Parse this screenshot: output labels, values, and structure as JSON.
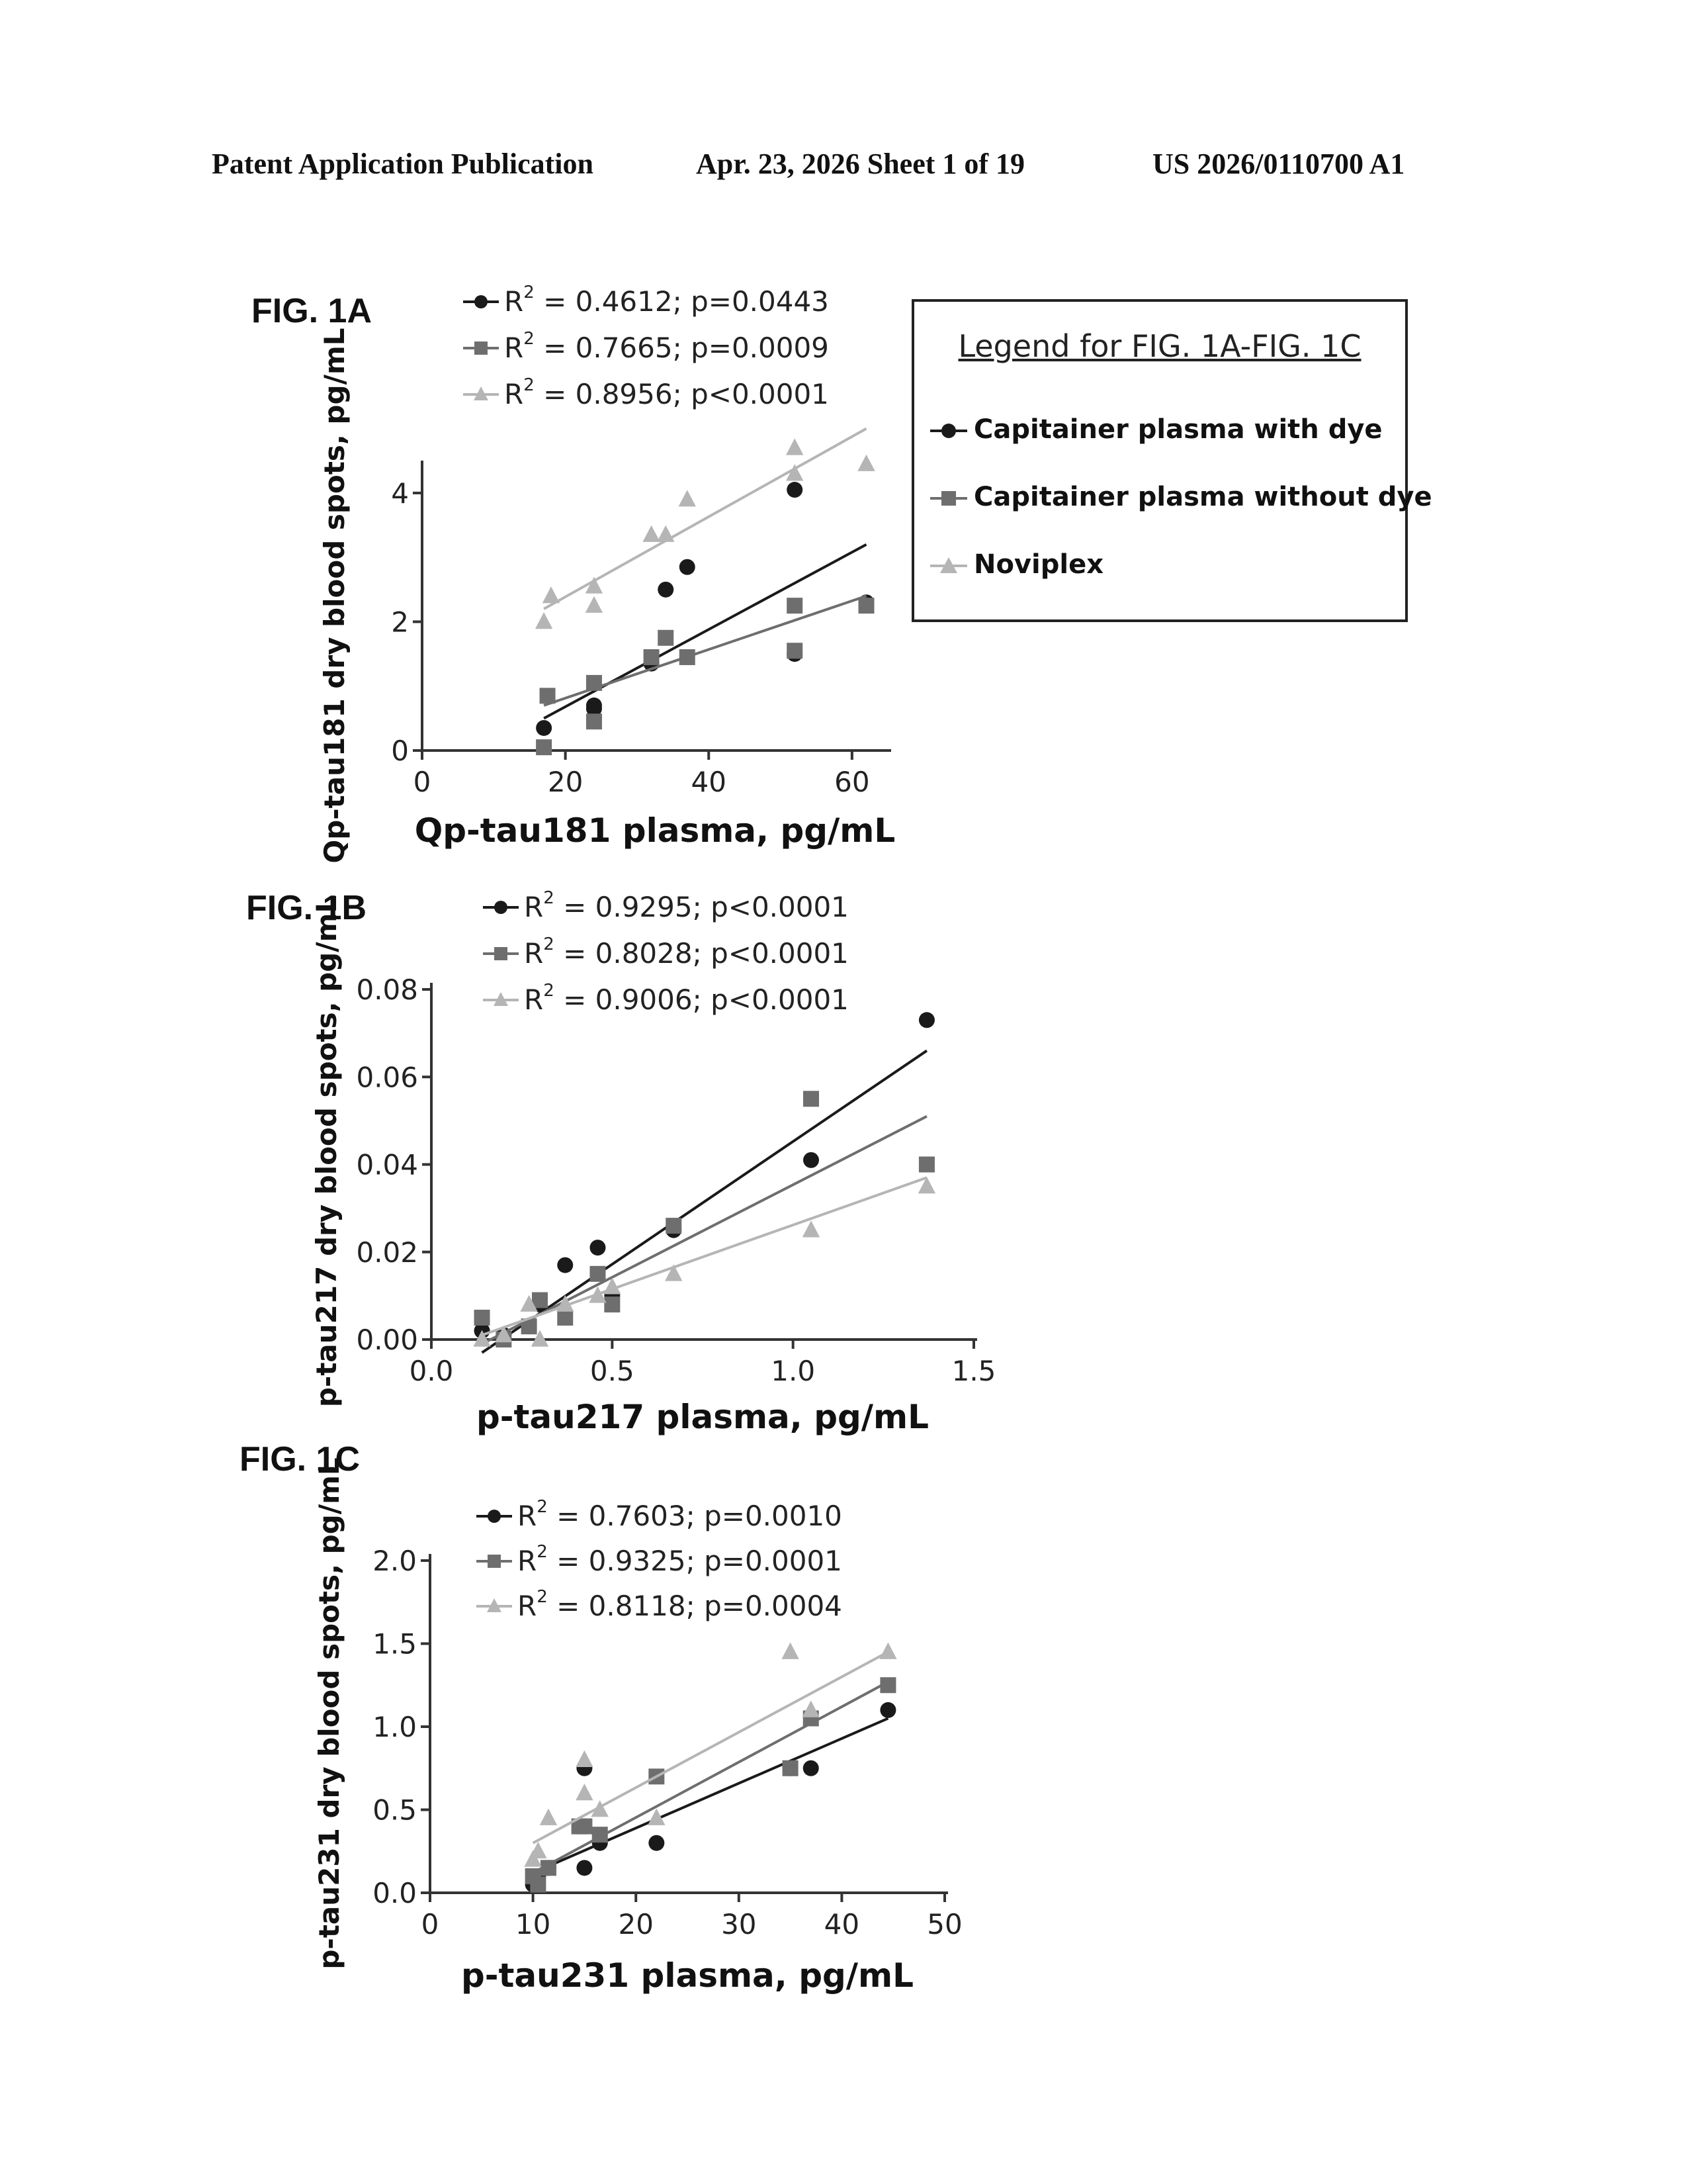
{
  "header": {
    "left": "Patent Application Publication",
    "middle": "Apr. 23, 2026  Sheet 1 of 19",
    "right": "US 2026/0110700 A1"
  },
  "legend": {
    "title": "Legend for FIG. 1A-FIG. 1C",
    "items": [
      {
        "label": "Capitainer plasma with dye",
        "color": "#1a1a1a",
        "marker": "circle"
      },
      {
        "label": "Capitainer plasma without dye",
        "color": "#6e6e6e",
        "marker": "square"
      },
      {
        "label": "Noviplex",
        "color": "#b5b5b5",
        "marker": "triangle"
      }
    ]
  },
  "chart_data": [
    {
      "type": "scatter",
      "figure_label": "FIG. 1A",
      "xlabel": "Qp-tau181 plasma, pg/mL",
      "ylabel": "Qp-tau181 dry blood spots, pg/mL",
      "xlim": [
        0,
        65
      ],
      "ylim": [
        0,
        4.4
      ],
      "xticks": [
        0,
        20,
        40,
        60
      ],
      "yticks": [
        0,
        2,
        4
      ],
      "xtick_labels": [
        "0",
        "20",
        "40",
        "60"
      ],
      "ytick_labels": [
        "0",
        "2",
        "4"
      ],
      "stats": [
        "= 0.4612; p=0.0443",
        "= 0.7665; p=0.0009",
        "= 0.8956; p<0.0001"
      ],
      "series": [
        {
          "points": [
            [
              17,
              0.35
            ],
            [
              24,
              0.5
            ],
            [
              24,
              0.65
            ],
            [
              24,
              0.7
            ],
            [
              32,
              1.35
            ],
            [
              34,
              2.5
            ],
            [
              37,
              2.85
            ],
            [
              52,
              4.05
            ],
            [
              52,
              1.5
            ],
            [
              62,
              2.3
            ]
          ],
          "line": [
            [
              17,
              0.5
            ],
            [
              62,
              3.2
            ]
          ]
        },
        {
          "points": [
            [
              17,
              0.05
            ],
            [
              17.5,
              0.85
            ],
            [
              24,
              1.05
            ],
            [
              24,
              0.45
            ],
            [
              32,
              1.45
            ],
            [
              34,
              1.75
            ],
            [
              37,
              1.45
            ],
            [
              52,
              2.25
            ],
            [
              52,
              1.55
            ],
            [
              62,
              2.25
            ]
          ],
          "line": [
            [
              17,
              0.7
            ],
            [
              62,
              2.4
            ]
          ]
        },
        {
          "points": [
            [
              17,
              2.0
            ],
            [
              18,
              2.4
            ],
            [
              24,
              2.55
            ],
            [
              24,
              2.25
            ],
            [
              32,
              3.35
            ],
            [
              34,
              3.35
            ],
            [
              37,
              3.9
            ],
            [
              52,
              4.7
            ],
            [
              52,
              4.3
            ],
            [
              62,
              4.45
            ]
          ],
          "line": [
            [
              17,
              2.2
            ],
            [
              62,
              5.0
            ]
          ]
        }
      ]
    },
    {
      "type": "scatter",
      "figure_label": "FIG. 1B",
      "xlabel": "p-tau217 plasma, pg/mL",
      "ylabel": "p-tau217 dry blood spots, pg/mL",
      "xlim": [
        0,
        1.5
      ],
      "ylim": [
        0,
        0.08
      ],
      "xticks": [
        0,
        0.5,
        1.0,
        1.5
      ],
      "yticks": [
        0,
        0.02,
        0.04,
        0.06,
        0.08
      ],
      "xtick_labels": [
        "0.0",
        "0.5",
        "1.0",
        "1.5"
      ],
      "ytick_labels": [
        "0.00",
        "0.02",
        "0.04",
        "0.06",
        "0.08"
      ],
      "stats": [
        "= 0.9295; p<0.0001",
        "= 0.8028; p<0.0001",
        "= 0.9006; p<0.0001"
      ],
      "series": [
        {
          "points": [
            [
              0.14,
              0.002
            ],
            [
              0.2,
              0.001
            ],
            [
              0.27,
              0.003
            ],
            [
              0.3,
              0.008
            ],
            [
              0.37,
              0.017
            ],
            [
              0.46,
              0.021
            ],
            [
              0.5,
              0.01
            ],
            [
              0.67,
              0.025
            ],
            [
              1.05,
              0.041
            ],
            [
              1.37,
              0.073
            ]
          ],
          "line": [
            [
              0.14,
              -0.003
            ],
            [
              1.37,
              0.066
            ]
          ]
        },
        {
          "points": [
            [
              0.14,
              0.005
            ],
            [
              0.2,
              0.0
            ],
            [
              0.27,
              0.003
            ],
            [
              0.3,
              0.009
            ],
            [
              0.37,
              0.005
            ],
            [
              0.46,
              0.015
            ],
            [
              0.5,
              0.008
            ],
            [
              0.67,
              0.026
            ],
            [
              1.05,
              0.055
            ],
            [
              1.37,
              0.04
            ]
          ],
          "line": [
            [
              0.14,
              -0.001
            ],
            [
              1.37,
              0.051
            ]
          ]
        },
        {
          "points": [
            [
              0.14,
              0.0
            ],
            [
              0.2,
              0.001
            ],
            [
              0.27,
              0.008
            ],
            [
              0.3,
              0.0
            ],
            [
              0.37,
              0.008
            ],
            [
              0.46,
              0.01
            ],
            [
              0.5,
              0.012
            ],
            [
              0.67,
              0.015
            ],
            [
              1.05,
              0.025
            ],
            [
              1.37,
              0.035
            ]
          ],
          "line": [
            [
              0.14,
              0.001
            ],
            [
              1.37,
              0.037
            ]
          ]
        }
      ]
    },
    {
      "type": "scatter",
      "figure_label": "FIG. 1C",
      "xlabel": "p-tau231 plasma, pg/mL",
      "ylabel": "p-tau231 dry blood spots, pg/mL",
      "xlim": [
        0,
        50
      ],
      "ylim": [
        0,
        2.0
      ],
      "xticks": [
        0,
        10,
        20,
        30,
        40,
        50
      ],
      "yticks": [
        0,
        0.5,
        1.0,
        1.5,
        2.0
      ],
      "xtick_labels": [
        "0",
        "10",
        "20",
        "30",
        "40",
        "50"
      ],
      "ytick_labels": [
        "0.0",
        "0.5",
        "1.0",
        "1.5",
        "2.0"
      ],
      "stats": [
        "= 0.7603; p=0.0010",
        "= 0.9325; p=0.0001",
        "= 0.8118; p=0.0004"
      ],
      "series": [
        {
          "points": [
            [
              10,
              0.05
            ],
            [
              10.5,
              0.1
            ],
            [
              11.5,
              0.15
            ],
            [
              15,
              0.15
            ],
            [
              15,
              0.75
            ],
            [
              16.5,
              0.3
            ],
            [
              22,
              0.3
            ],
            [
              35,
              0.75
            ],
            [
              37,
              0.75
            ],
            [
              44.5,
              1.1
            ]
          ],
          "line": [
            [
              10,
              0.12
            ],
            [
              44.5,
              1.05
            ]
          ]
        },
        {
          "points": [
            [
              10,
              0.1
            ],
            [
              10.5,
              0.05
            ],
            [
              11.5,
              0.15
            ],
            [
              14.5,
              0.4
            ],
            [
              15,
              0.4
            ],
            [
              16.5,
              0.35
            ],
            [
              22,
              0.7
            ],
            [
              35,
              0.75
            ],
            [
              37,
              1.05
            ],
            [
              44.5,
              1.25
            ]
          ],
          "line": [
            [
              10,
              0.12
            ],
            [
              44.5,
              1.27
            ]
          ]
        },
        {
          "points": [
            [
              10,
              0.2
            ],
            [
              10.5,
              0.25
            ],
            [
              11.5,
              0.45
            ],
            [
              15,
              0.8
            ],
            [
              15,
              0.6
            ],
            [
              16.5,
              0.5
            ],
            [
              22,
              0.45
            ],
            [
              35,
              1.45
            ],
            [
              37,
              1.1
            ],
            [
              44.5,
              1.45
            ]
          ],
          "line": [
            [
              10,
              0.3
            ],
            [
              44.5,
              1.45
            ]
          ]
        }
      ]
    }
  ]
}
